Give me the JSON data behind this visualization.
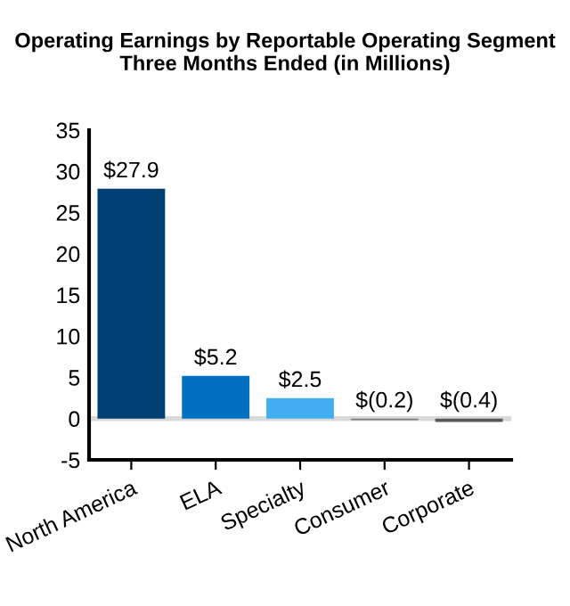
{
  "chart_data": {
    "type": "bar",
    "title": "Operating Earnings by Reportable Operating Segment\nThree Months Ended (in Millions)",
    "categories": [
      "North America",
      "ELA",
      "Specialty",
      "Consumer",
      "Corporate"
    ],
    "values": [
      27.9,
      5.2,
      2.5,
      -0.2,
      -0.4
    ],
    "colors": [
      "#003f72",
      "#0070c0",
      "#41aef2",
      "#7f7f7f",
      "#595959"
    ],
    "value_labels": [
      "$27.9",
      "$5.2",
      "$2.5",
      "$(0.2)",
      "$(0.4)"
    ],
    "ylim": [
      -5,
      35
    ],
    "yticks": [
      -5,
      0,
      5,
      10,
      15,
      20,
      25,
      30,
      35
    ],
    "ref_lines": [
      {
        "axis": "y",
        "value": 0,
        "color": "#d9d9d9"
      }
    ],
    "grid": false,
    "legend": false
  }
}
